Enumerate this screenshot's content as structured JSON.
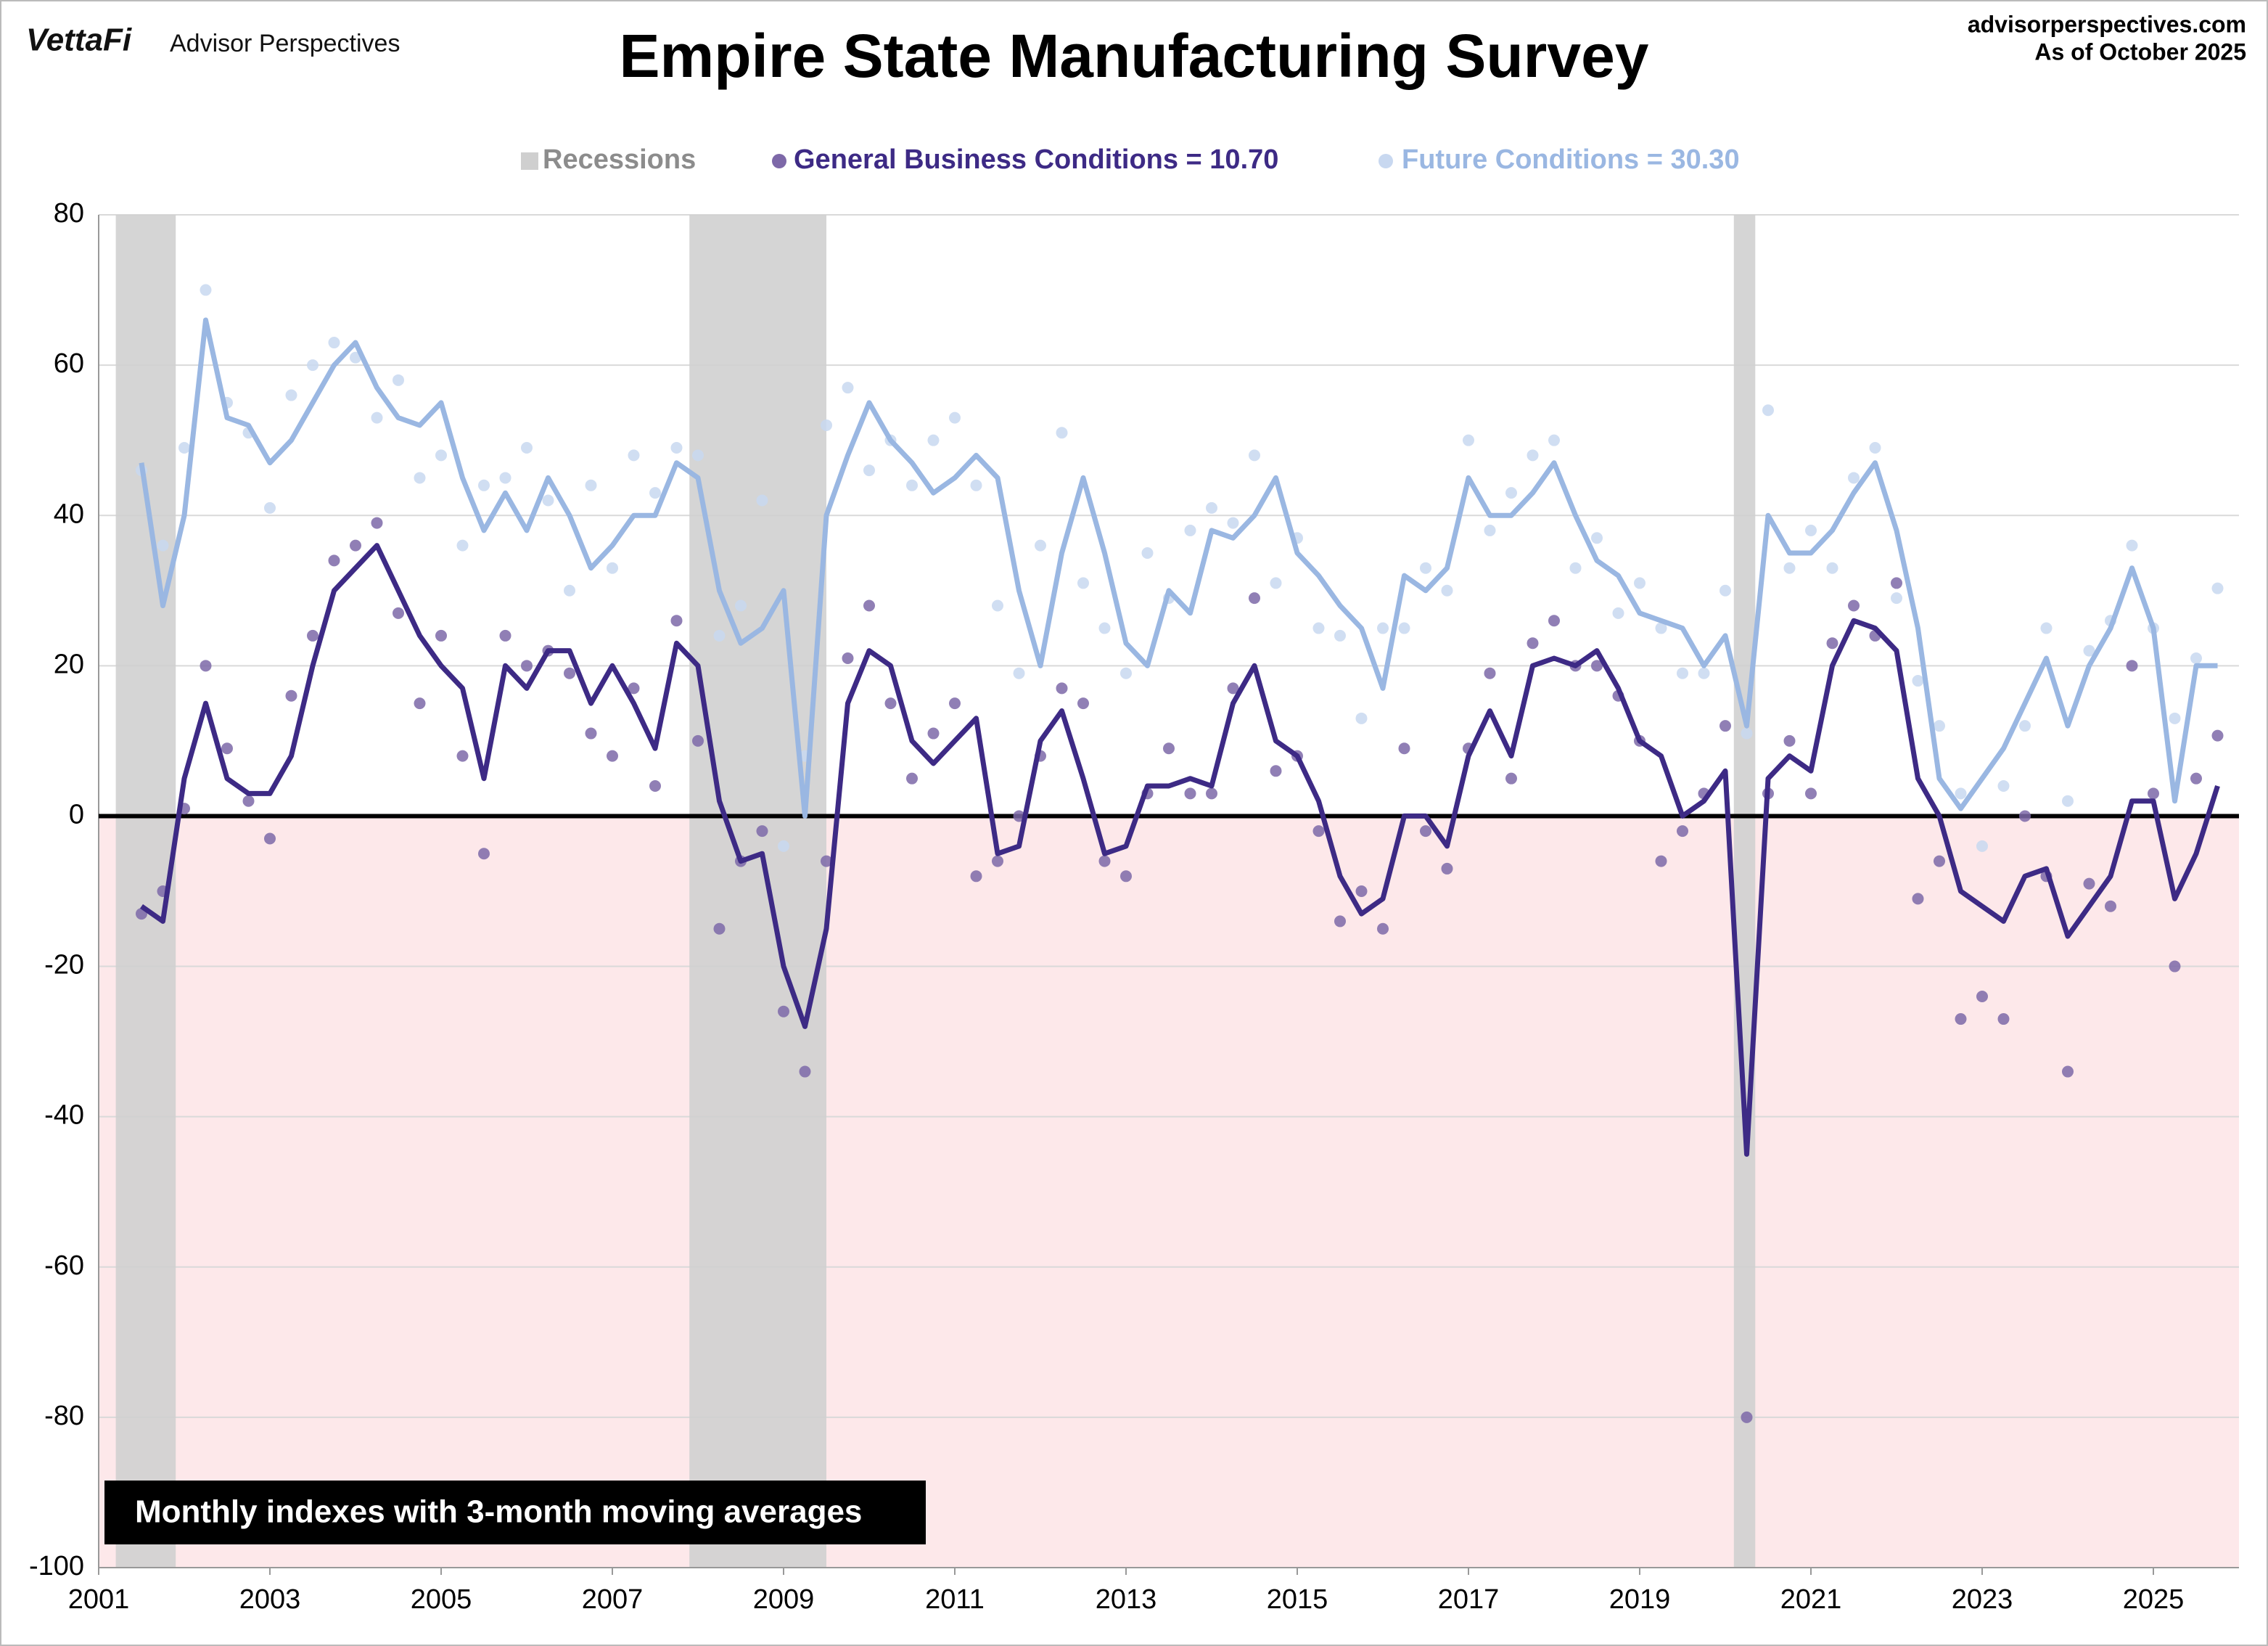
{
  "header": {
    "logo": "VettaFi",
    "brand": "Advisor Perspectives",
    "source": "advisorperspectives.com",
    "date": "As of October 2025"
  },
  "chart_data": {
    "type": "line",
    "title": "Empire State Manufacturing Survey",
    "annotation": "Monthly indexes with 3-month moving averages",
    "xlim": [
      2001,
      2026
    ],
    "xticks": [
      2001,
      2003,
      2005,
      2007,
      2009,
      2011,
      2013,
      2015,
      2017,
      2019,
      2021,
      2023,
      2025
    ],
    "ylim": [
      -100,
      80
    ],
    "yticks": [
      -100,
      -80,
      -60,
      -40,
      -20,
      0,
      20,
      40,
      60,
      80
    ],
    "grid": true,
    "negative_fill": "#fde8ea",
    "recessions": {
      "name": "Recessions",
      "color": "#cfcfcf",
      "periods": [
        [
          2001.2,
          2001.9
        ],
        [
          2007.9,
          2009.5
        ],
        [
          2020.1,
          2020.35
        ]
      ]
    },
    "x": [
      2001.5,
      2001.75,
      2002,
      2002.25,
      2002.5,
      2002.75,
      2003,
      2003.25,
      2003.5,
      2003.75,
      2004,
      2004.25,
      2004.5,
      2004.75,
      2005,
      2005.25,
      2005.5,
      2005.75,
      2006,
      2006.25,
      2006.5,
      2006.75,
      2007,
      2007.25,
      2007.5,
      2007.75,
      2008,
      2008.25,
      2008.5,
      2008.75,
      2009,
      2009.25,
      2009.5,
      2009.75,
      2010,
      2010.25,
      2010.5,
      2010.75,
      2011,
      2011.25,
      2011.5,
      2011.75,
      2012,
      2012.25,
      2012.5,
      2012.75,
      2013,
      2013.25,
      2013.5,
      2013.75,
      2014,
      2014.25,
      2014.5,
      2014.75,
      2015,
      2015.25,
      2015.5,
      2015.75,
      2016,
      2016.25,
      2016.5,
      2016.75,
      2017,
      2017.25,
      2017.5,
      2017.75,
      2018,
      2018.25,
      2018.5,
      2018.75,
      2019,
      2019.25,
      2019.5,
      2019.75,
      2020,
      2020.25,
      2020.5,
      2020.75,
      2021,
      2021.25,
      2021.5,
      2021.75,
      2022,
      2022.25,
      2022.5,
      2022.75,
      2023,
      2023.25,
      2023.5,
      2023.75,
      2024,
      2024.25,
      2024.5,
      2024.75,
      2025,
      2025.25,
      2025.5,
      2025.75
    ],
    "series": [
      {
        "name": "General Business Conditions = 10.70",
        "color": "#3d2a85",
        "dot_color": "#7d68a8",
        "values": [
          -13,
          -10,
          1,
          20,
          9,
          2,
          -3,
          16,
          24,
          34,
          36,
          39,
          27,
          15,
          24,
          8,
          -5,
          24,
          20,
          22,
          19,
          11,
          8,
          17,
          4,
          26,
          10,
          -15,
          -6,
          -2,
          -26,
          -34,
          -6,
          21,
          28,
          15,
          5,
          11,
          15,
          -8,
          -6,
          0,
          8,
          17,
          15,
          -6,
          -8,
          3,
          9,
          3,
          3,
          17,
          29,
          6,
          8,
          -2,
          -14,
          -10,
          -15,
          9,
          -2,
          -7,
          9,
          19,
          5,
          23,
          26,
          20,
          20,
          16,
          10,
          -6,
          -2,
          3,
          12,
          -80,
          3,
          10,
          3,
          23,
          28,
          24,
          31,
          -11,
          -6,
          -27,
          -24,
          -27,
          0,
          -8,
          -34,
          -9,
          -12,
          20,
          3,
          -20,
          5,
          10.7
        ],
        "moving_average": [
          -12,
          -14,
          5,
          15,
          5,
          3,
          3,
          8,
          20,
          30,
          33,
          36,
          30,
          24,
          20,
          17,
          5,
          20,
          17,
          22,
          22,
          15,
          20,
          15,
          9,
          23,
          20,
          2,
          -6,
          -5,
          -20,
          -28,
          -15,
          15,
          22,
          20,
          10,
          7,
          10,
          13,
          -5,
          -4,
          10,
          14,
          5,
          -5,
          -4,
          4,
          4,
          5,
          4,
          15,
          20,
          10,
          8,
          2,
          -8,
          -13,
          -11,
          0,
          0,
          -4,
          8,
          14,
          8,
          20,
          21,
          20,
          22,
          17,
          10,
          8,
          0,
          2,
          6,
          -45,
          5,
          8,
          6,
          20,
          26,
          25,
          22,
          5,
          0,
          -10,
          -12,
          -14,
          -8,
          -7,
          -16,
          -12,
          -8,
          2,
          2,
          -11,
          -5,
          4
        ]
      },
      {
        "name": "Future Conditions = 30.30",
        "color": "#9ab7e2",
        "dot_color": "#c8d8f0",
        "values": [
          46,
          36,
          49,
          70,
          55,
          51,
          41,
          56,
          60,
          63,
          61,
          53,
          58,
          45,
          48,
          36,
          44,
          45,
          49,
          42,
          30,
          44,
          33,
          48,
          43,
          49,
          48,
          24,
          28,
          42,
          -4,
          8,
          52,
          57,
          46,
          50,
          44,
          50,
          53,
          44,
          28,
          19,
          36,
          51,
          31,
          25,
          19,
          35,
          29,
          38,
          41,
          39,
          48,
          31,
          37,
          25,
          24,
          13,
          25,
          25,
          33,
          30,
          50,
          38,
          43,
          48,
          50,
          33,
          37,
          27,
          31,
          25,
          19,
          19,
          30,
          11,
          54,
          33,
          38,
          33,
          45,
          49,
          29,
          18,
          12,
          3,
          -4,
          4,
          12,
          25,
          2,
          22,
          26,
          36,
          25,
          13,
          21,
          30.3
        ],
        "moving_average": [
          47,
          28,
          40,
          66,
          53,
          52,
          47,
          50,
          55,
          60,
          63,
          57,
          53,
          52,
          55,
          45,
          38,
          43,
          38,
          45,
          40,
          33,
          36,
          40,
          40,
          47,
          45,
          30,
          23,
          25,
          30,
          0,
          40,
          48,
          55,
          50,
          47,
          43,
          45,
          48,
          45,
          30,
          20,
          35,
          45,
          35,
          23,
          20,
          30,
          27,
          38,
          37,
          40,
          45,
          35,
          32,
          28,
          25,
          17,
          32,
          30,
          33,
          45,
          40,
          40,
          43,
          47,
          40,
          34,
          32,
          27,
          26,
          25,
          20,
          24,
          12,
          40,
          35,
          35,
          38,
          43,
          47,
          38,
          25,
          5,
          1,
          5,
          9,
          15,
          21,
          12,
          20,
          25,
          33,
          25,
          2,
          20,
          20
        ]
      }
    ]
  }
}
